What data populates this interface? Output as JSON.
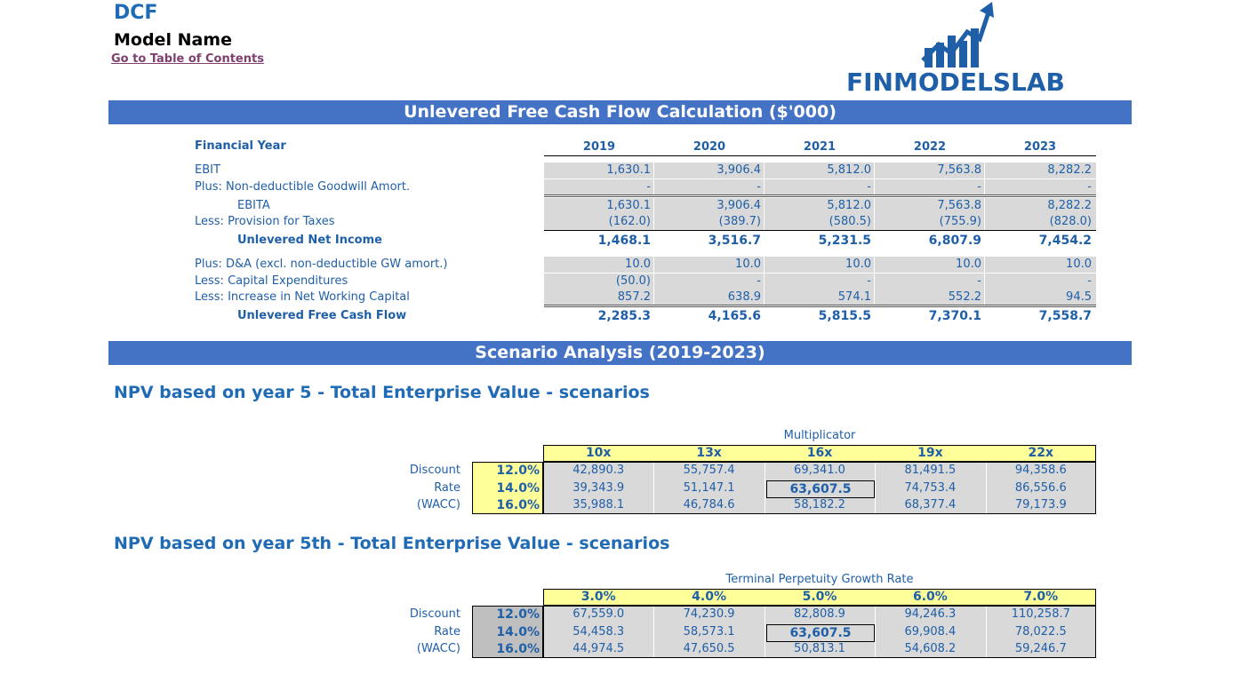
{
  "header": {
    "title": "DCF",
    "model_name": "Model Name",
    "toc_link": "Go to Table of Contents",
    "logo_text": "FINMODELSLAB"
  },
  "banner_ufcf": "Unlevered Free Cash Flow Calculation ($'000)",
  "banner_scenario": "Scenario Analysis (2019-2023)",
  "ufcf": {
    "year_label": "Financial Year",
    "years": [
      "2019",
      "2020",
      "2021",
      "2022",
      "2023"
    ],
    "rows": [
      {
        "label": "EBIT",
        "values": [
          "1,630.1",
          "3,906.4",
          "5,812.0",
          "7,563.8",
          "8,282.2"
        ]
      },
      {
        "label": "Plus: Non-deductible Goodwill Amort.",
        "values": [
          "-",
          "-",
          "-",
          "-",
          "-"
        ]
      },
      {
        "label": "EBITA",
        "values": [
          "1,630.1",
          "3,906.4",
          "5,812.0",
          "7,563.8",
          "8,282.2"
        ]
      },
      {
        "label": "Less: Provision for Taxes",
        "values": [
          "(162.0)",
          "(389.7)",
          "(580.5)",
          "(755.9)",
          "(828.0)"
        ]
      },
      {
        "label": "Unlevered Net Income",
        "values": [
          "1,468.1",
          "3,516.7",
          "5,231.5",
          "6,807.9",
          "7,454.2"
        ]
      },
      {
        "label": "Plus: D&A (excl. non-deductible GW amort.)",
        "values": [
          "10.0",
          "10.0",
          "10.0",
          "10.0",
          "10.0"
        ]
      },
      {
        "label": "Less: Capital Expenditures",
        "values": [
          "(50.0)",
          "-",
          "-",
          "-",
          "-"
        ]
      },
      {
        "label": "Less: Increase in Net Working Capital",
        "values": [
          "857.2",
          "638.9",
          "574.1",
          "552.2",
          "94.5"
        ]
      },
      {
        "label": "Unlevered Free Cash Flow",
        "values": [
          "2,285.3",
          "4,165.6",
          "5,815.5",
          "7,370.1",
          "7,558.7"
        ]
      }
    ]
  },
  "npv1": {
    "title": "NPV based on year 5 - Total Enterprise Value - scenarios",
    "axis_label": "Multiplicator",
    "row_labels": [
      "Discount",
      "Rate",
      "(WACC)"
    ],
    "columns": [
      "10x",
      "13x",
      "16x",
      "19x",
      "22x"
    ],
    "rates": [
      "12.0%",
      "14.0%",
      "16.0%"
    ],
    "values": [
      [
        "42,890.3",
        "55,757.4",
        "69,341.0",
        "81,491.5",
        "94,358.6"
      ],
      [
        "39,343.9",
        "51,147.1",
        "63,607.5",
        "74,753.4",
        "86,556.6"
      ],
      [
        "35,988.1",
        "46,784.6",
        "58,182.2",
        "68,377.4",
        "79,173.9"
      ]
    ]
  },
  "npv2": {
    "title": "NPV based on year 5th - Total Enterprise Value - scenarios",
    "axis_label": "Terminal Perpetuity Growth Rate",
    "row_labels": [
      "Discount",
      "Rate",
      "(WACC)"
    ],
    "columns": [
      "3.0%",
      "4.0%",
      "5.0%",
      "6.0%",
      "7.0%"
    ],
    "rates": [
      "12.0%",
      "14.0%",
      "16.0%"
    ],
    "values": [
      [
        "67,559.0",
        "74,230.9",
        "82,808.9",
        "94,246.3",
        "110,258.7"
      ],
      [
        "54,458.3",
        "58,573.1",
        "63,607.5",
        "69,908.4",
        "78,022.5"
      ],
      [
        "44,974.5",
        "47,650.5",
        "50,813.1",
        "54,608.2",
        "59,246.7"
      ]
    ]
  },
  "colors": {
    "banner": "#4472c4",
    "text_blue": "#1f5fa8",
    "highlight_yellow": "#ffff99",
    "cell_grey": "#d9d9d9",
    "link": "#7f3f6f"
  }
}
